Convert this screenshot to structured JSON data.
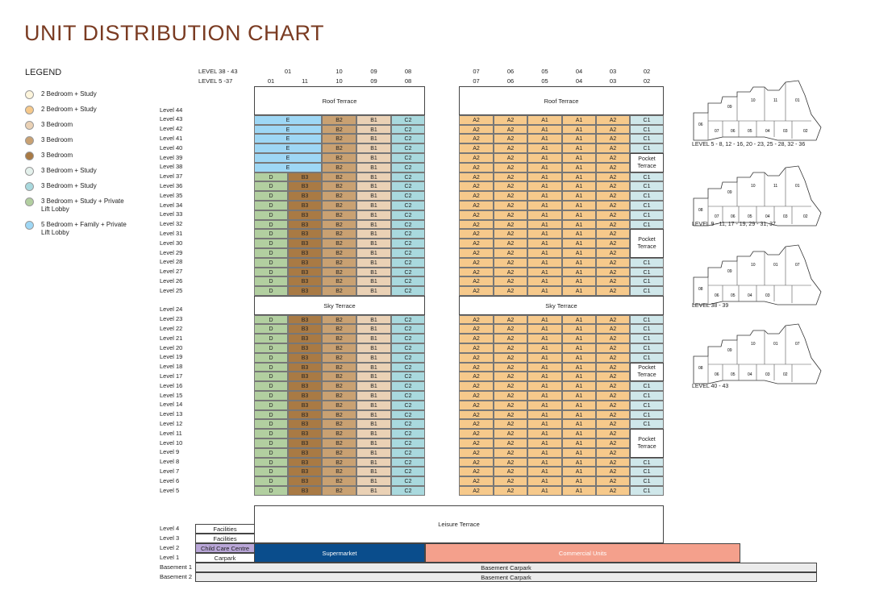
{
  "title": "UNIT DISTRIBUTION CHART",
  "legend": {
    "title": "LEGEND",
    "items": [
      {
        "label": "2 Bedroom + Study",
        "color": "#fdf5dc"
      },
      {
        "label": "2 Bedroom + Study",
        "color": "#f6c98b"
      },
      {
        "label": "3 Bedroom",
        "color": "#ead1b5"
      },
      {
        "label": "3 Bedroom",
        "color": "#c9a172"
      },
      {
        "label": "3 Bedroom",
        "color": "#a97a44"
      },
      {
        "label": "3 Bedroom + Study",
        "color": "#e4f1ec"
      },
      {
        "label": "3 Bedroom + Study",
        "color": "#a9d9de"
      },
      {
        "label": "3 Bedroom + Study + Private Lift Lobby",
        "color": "#b2cfa0"
      },
      {
        "label": "5 Bedroom + Family + Private Lift Lobby",
        "color": "#9ed7f5"
      }
    ]
  },
  "headers": {
    "row1_label": "LEVEL 38 - 43",
    "row2_label": "LEVEL 5 -37",
    "left_row1": [
      "01",
      "",
      "10",
      "09",
      "08"
    ],
    "left_row2": [
      "01",
      "11",
      "10",
      "09",
      "08"
    ],
    "right_row1": [
      "07",
      "06",
      "05",
      "04",
      "03",
      "02"
    ],
    "right_row2": [
      "07",
      "06",
      "05",
      "04",
      "03",
      "02"
    ]
  },
  "levels_tower": [
    "Level 44",
    "Level 43",
    "Level 42",
    "Level 41",
    "Level 40",
    "Level 39",
    "Level 38",
    "Level 37",
    "Level 36",
    "Level 35",
    "Level 34",
    "Level 33",
    "Level 32",
    "Level 31",
    "Level 30",
    "Level 29",
    "Level 28",
    "Level 27",
    "Level 26",
    "Level 25",
    "",
    "Level 24",
    "Level 23",
    "Level 22",
    "Level 21",
    "Level 20",
    "Level 19",
    "Level 18",
    "Level 17",
    "Level 16",
    "Level 15",
    "Level 14",
    "Level 13",
    "Level 12",
    "Level 11",
    "Level 10",
    "Level 9",
    "Level 8",
    "Level 7",
    "Level 6",
    "Level 5"
  ],
  "levels_podium": [
    "Level 4",
    "Level 3",
    "Level 2",
    "Level 1",
    "Basement 1",
    "Basement 2"
  ],
  "unit_types": {
    "E": "E",
    "D": "D",
    "B3": "B3",
    "B2": "B2",
    "B1": "B1",
    "C2": "C2",
    "A2": "A2",
    "A1": "A1",
    "C1": "C1"
  },
  "colors": {
    "E": "#9ed7f5",
    "D": "#b2cfa0",
    "B3": "#a97a44",
    "B2": "#c9a172",
    "B1": "#ead1b5",
    "C2": "#a9d9de",
    "A2": "#f6c98b",
    "A1": "#f6c98b",
    "C1": "#cfe7ea",
    "supermarket": "#0a4d8c",
    "commercial": "#f4a08c",
    "childcare": "#b9a6d8",
    "basement": "#ebebeb"
  },
  "labels": {
    "roof_terrace": "Roof Terrace",
    "sky_terrace": "Sky Terrace",
    "pocket_terrace": "Pocket Terrace",
    "leisure_terrace": "Leisure Terrace",
    "facilities": "Facilities",
    "child_care": "Child Care Centre",
    "carpark": "Carpark",
    "supermarket": "Supermarket",
    "commercial": "Commercial Units",
    "basement_carpark": "Basement Carpark"
  },
  "plans": [
    {
      "label": "LEVEL 5 - 8, 12 - 16, 20 - 23, 25 - 28, 32 - 36",
      "units": [
        "06",
        "09",
        "10",
        "11",
        "01",
        "07",
        "06",
        "05",
        "04",
        "03",
        "02"
      ]
    },
    {
      "label": "LEVEL 9 - 11, 17 - 19, 29 - 31, 37",
      "units": [
        "08",
        "09",
        "10",
        "11",
        "01",
        "07",
        "06",
        "05",
        "04",
        "03",
        "02"
      ]
    },
    {
      "label": "LEVEL 38 - 39",
      "units": [
        "08",
        "09",
        "10",
        "01",
        "07",
        "06",
        "05",
        "04",
        "03"
      ]
    },
    {
      "label": "LEVEL 40 - 43",
      "units": [
        "08",
        "09",
        "10",
        "01",
        "07",
        "06",
        "05",
        "04",
        "03",
        "02"
      ]
    }
  ]
}
